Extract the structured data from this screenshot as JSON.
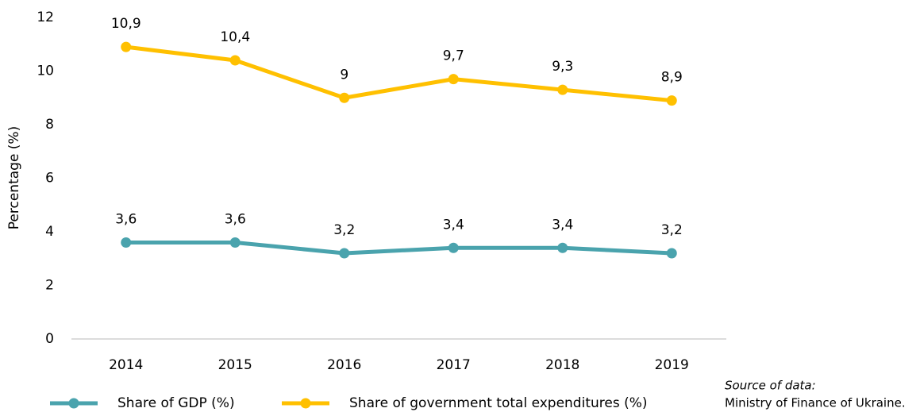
{
  "chart_data": {
    "type": "line",
    "y_label": "Percentage (%)",
    "categories": [
      "2014",
      "2015",
      "2016",
      "2017",
      "2018",
      "2019"
    ],
    "series": [
      {
        "name": "Share of GDP (%)",
        "color": "#4aa3ad",
        "values": [
          3.6,
          3.6,
          3.2,
          3.4,
          3.4,
          3.2
        ],
        "value_labels": [
          "3,6",
          "3,6",
          "3,2",
          "3,4",
          "3,4",
          "3,2"
        ]
      },
      {
        "name": "Share of government total expenditures (%)",
        "color": "#ffc000",
        "values": [
          10.9,
          10.4,
          9,
          9.7,
          9.3,
          8.9
        ],
        "value_labels": [
          "10,9",
          "10,4",
          "9",
          "9,7",
          "9,3",
          "8,9"
        ]
      }
    ],
    "ylim": [
      0,
      12
    ],
    "yticks": [
      0,
      2,
      4,
      6,
      8,
      10,
      12
    ],
    "grid": false,
    "legend": "bottom",
    "annotations": [
      "Source of data:",
      "Ministry of Finance of Ukraine."
    ]
  }
}
